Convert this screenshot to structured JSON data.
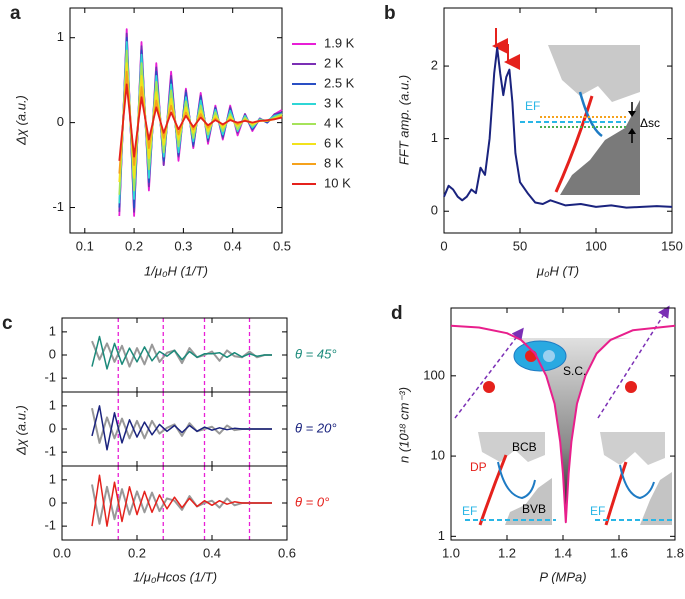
{
  "chart_data": [
    {
      "type": "line",
      "label": "a",
      "xlabel": "1/μ₀H (1/T)",
      "ylabel": "Δχ (a.u.)",
      "legend": "right",
      "xlim": [
        0.07,
        0.5
      ],
      "ylim": [
        -1.3,
        1.35
      ],
      "xticks": [
        0.1,
        0.2,
        0.3,
        0.4,
        0.5
      ],
      "yticks": [
        -1,
        0,
        1
      ],
      "x": [
        0.17,
        0.185,
        0.2,
        0.215,
        0.23,
        0.245,
        0.26,
        0.275,
        0.29,
        0.305,
        0.32,
        0.335,
        0.35,
        0.365,
        0.38,
        0.395,
        0.41,
        0.425,
        0.44,
        0.455,
        0.47,
        0.485,
        0.5
      ],
      "series": [
        {
          "name": "1.9 K",
          "color": "#e81fd6",
          "values": [
            -1.1,
            1.1,
            -1.1,
            0.95,
            -0.8,
            0.7,
            -0.5,
            0.6,
            -0.45,
            0.4,
            -0.3,
            0.35,
            -0.25,
            0.2,
            -0.2,
            0.2,
            -0.15,
            0.1,
            -0.1,
            0.05,
            0,
            0.1,
            0.15
          ]
        },
        {
          "name": "2 K",
          "color": "#7b2fb5",
          "values": [
            -1.05,
            1.05,
            -1.05,
            0.9,
            -0.75,
            0.65,
            -0.5,
            0.55,
            -0.4,
            0.38,
            -0.28,
            0.32,
            -0.22,
            0.18,
            -0.18,
            0.18,
            -0.12,
            0.1,
            -0.08,
            0.05,
            0,
            0.1,
            0.12
          ]
        },
        {
          "name": "2.5 K",
          "color": "#2a4fc4",
          "values": [
            -1.0,
            1.0,
            -1.0,
            0.85,
            -0.7,
            0.6,
            -0.45,
            0.5,
            -0.38,
            0.35,
            -0.26,
            0.3,
            -0.2,
            0.17,
            -0.16,
            0.16,
            -0.1,
            0.08,
            -0.08,
            0.04,
            0,
            0.08,
            0.12
          ]
        },
        {
          "name": "3 K",
          "color": "#2fd6d6",
          "values": [
            -0.95,
            0.95,
            -0.9,
            0.8,
            -0.65,
            0.55,
            -0.4,
            0.45,
            -0.35,
            0.3,
            -0.22,
            0.26,
            -0.18,
            0.15,
            -0.14,
            0.14,
            -0.1,
            0.08,
            -0.06,
            0.04,
            0.02,
            0.08,
            0.1
          ]
        },
        {
          "name": "4 K",
          "color": "#a6e35a",
          "values": [
            -0.85,
            0.85,
            -0.8,
            0.7,
            -0.55,
            0.48,
            -0.35,
            0.38,
            -0.28,
            0.25,
            -0.18,
            0.2,
            -0.14,
            0.12,
            -0.1,
            0.1,
            -0.08,
            0.06,
            -0.04,
            0.03,
            0.02,
            0.06,
            0.1
          ]
        },
        {
          "name": "6 K",
          "color": "#f2e21c",
          "values": [
            -0.7,
            0.7,
            -0.65,
            0.55,
            -0.42,
            0.36,
            -0.26,
            0.28,
            -0.2,
            0.18,
            -0.12,
            0.14,
            -0.1,
            0.08,
            -0.06,
            0.07,
            -0.04,
            0.04,
            -0.02,
            0.02,
            0.02,
            0.05,
            0.08
          ]
        },
        {
          "name": "8 K",
          "color": "#f5a21c",
          "values": [
            -0.6,
            0.6,
            -0.5,
            0.42,
            -0.3,
            0.26,
            -0.18,
            0.2,
            -0.14,
            0.12,
            -0.08,
            0.1,
            -0.06,
            0.05,
            -0.03,
            0.04,
            -0.02,
            0.03,
            0,
            0.02,
            0.02,
            0.04,
            0.07
          ]
        },
        {
          "name": "10 K",
          "color": "#e5211c",
          "values": [
            -0.45,
            0.45,
            -0.4,
            0.3,
            -0.2,
            0.18,
            -0.12,
            0.12,
            -0.08,
            0.08,
            -0.05,
            0.06,
            -0.03,
            0.03,
            -0.02,
            0.03,
            0,
            0.02,
            0,
            0.02,
            0.03,
            0.04,
            0.06
          ]
        }
      ]
    },
    {
      "type": "line",
      "label": "b",
      "xlabel": "μ₀H  (T)",
      "ylabel": "FFT amp. (a.u.)",
      "color": "#1a237e",
      "xlim": [
        0,
        150
      ],
      "ylim": [
        -0.3,
        2.8
      ],
      "xticks": [
        0,
        50,
        100,
        150
      ],
      "yticks": [
        0,
        1,
        2
      ],
      "x": [
        0,
        3,
        6,
        9,
        12,
        15,
        18,
        21,
        24,
        27,
        30,
        33,
        35,
        37,
        39,
        41,
        43,
        45,
        47,
        50,
        55,
        60,
        65,
        70,
        80,
        90,
        100,
        110,
        120,
        130,
        140,
        150
      ],
      "values": [
        0.2,
        0.35,
        0.3,
        0.2,
        0.15,
        0.2,
        0.3,
        0.25,
        0.6,
        0.5,
        1.0,
        1.9,
        2.25,
        1.9,
        1.6,
        1.85,
        1.95,
        1.5,
        0.8,
        0.4,
        0.25,
        0.12,
        0.1,
        0.15,
        0.08,
        0.1,
        0.06,
        0.08,
        0.05,
        0.06,
        0.07,
        0.06
      ],
      "annotations": [
        "EF",
        "Δsc"
      ]
    },
    {
      "type": "stacked-line",
      "label": "c",
      "xlabel": "1/μ₀Hcos (1/T)",
      "ylabel": "Δχ (a.u.)",
      "xlim": [
        0,
        0.6
      ],
      "ylim": [
        -1.6,
        1.6
      ],
      "xticks": [
        {
          "value": 0,
          "label": "0.0"
        },
        0.2,
        0.4,
        0.6
      ],
      "yticks": [
        -1,
        0,
        1
      ],
      "vlines": [
        0.15,
        0.27,
        0.38,
        0.5
      ],
      "vline_color": "#e81fd6",
      "fit_color": "#999999",
      "x": [
        0.08,
        0.1,
        0.12,
        0.14,
        0.16,
        0.18,
        0.2,
        0.22,
        0.24,
        0.26,
        0.28,
        0.3,
        0.32,
        0.34,
        0.36,
        0.38,
        0.4,
        0.42,
        0.44,
        0.46,
        0.48,
        0.5,
        0.52,
        0.54,
        0.56
      ],
      "panels": [
        {
          "label": "θ = 45°",
          "color": "#1b8a7a",
          "values": [
            -0.5,
            0.8,
            -0.6,
            0.5,
            -0.4,
            0.3,
            -0.3,
            0.35,
            -0.25,
            0.15,
            -0.05,
            0.2,
            -0.2,
            0.15,
            -0.1,
            0.05,
            0.05,
            0.1,
            -0.1,
            0.1,
            -0.08,
            0.05,
            -0.05,
            0,
            0
          ],
          "fit": [
            0.6,
            -0.2,
            0.5,
            -0.3,
            0.4,
            -0.5,
            0.3,
            -0.4,
            0.45,
            -0.3,
            0.1,
            0.2,
            -0.35,
            0.3,
            -0.1,
            0,
            0.15,
            -0.25,
            0.2,
            -0.05,
            -0.1,
            0.15,
            -0.1,
            0,
            0
          ]
        },
        {
          "label": "θ = 20°",
          "color": "#1a237e",
          "values": [
            -0.3,
            1.0,
            -0.9,
            0.7,
            -0.6,
            0.4,
            -0.35,
            0.3,
            -0.25,
            0.2,
            -0.1,
            0.15,
            -0.15,
            0.15,
            -0.1,
            0.08,
            -0.05,
            0.05,
            -0.03,
            0.03,
            0,
            0,
            0,
            0,
            0
          ],
          "fit": [
            0.9,
            -0.6,
            0.5,
            -0.4,
            0.45,
            -0.4,
            0.35,
            -0.4,
            0.35,
            -0.2,
            0.05,
            0.2,
            -0.3,
            0.25,
            -0.1,
            0,
            0.1,
            -0.2,
            0.15,
            -0.05,
            0,
            0,
            0,
            0,
            0
          ]
        },
        {
          "label": "θ = 0°",
          "color": "#e5211c",
          "values": [
            -1.0,
            1.2,
            -1.0,
            0.9,
            -0.8,
            0.7,
            -0.5,
            0.5,
            -0.4,
            0.35,
            -0.25,
            0.25,
            -0.2,
            0.2,
            -0.15,
            0.1,
            -0.1,
            0.1,
            -0.05,
            0.05,
            0,
            0,
            0,
            0,
            0
          ],
          "fit": [
            0.8,
            -0.9,
            0.7,
            -0.7,
            0.6,
            -0.5,
            0.5,
            -0.4,
            0.45,
            -0.35,
            0.2,
            0.1,
            -0.3,
            0.3,
            -0.15,
            0,
            0.1,
            -0.2,
            0.2,
            -0.1,
            0,
            0,
            0,
            0,
            0
          ]
        }
      ]
    },
    {
      "type": "line",
      "label": "d",
      "xlabel": "P (MPa)",
      "ylabel": "n (10¹⁸ cm⁻³)",
      "color": "#e81f8c",
      "yscale": "log",
      "xlim": [
        1.0,
        1.8
      ],
      "ylim": [
        0.9,
        700
      ],
      "xticks": [
        {
          "value": 1,
          "label": "1.0"
        },
        1.2,
        1.4,
        1.6,
        1.8
      ],
      "yticks": [
        1,
        10,
        100
      ],
      "x": [
        1.0,
        1.1,
        1.2,
        1.25,
        1.3,
        1.34,
        1.37,
        1.39,
        1.4,
        1.41,
        1.42,
        1.43,
        1.45,
        1.48,
        1.52,
        1.57,
        1.65,
        1.8
      ],
      "values": [
        420,
        400,
        340,
        280,
        190,
        100,
        45,
        15,
        6,
        1.5,
        6,
        15,
        45,
        100,
        190,
        280,
        370,
        420
      ],
      "annotations": [
        "S.C.",
        "BCB",
        "DP",
        "BVB",
        "EF",
        "EF"
      ]
    }
  ]
}
